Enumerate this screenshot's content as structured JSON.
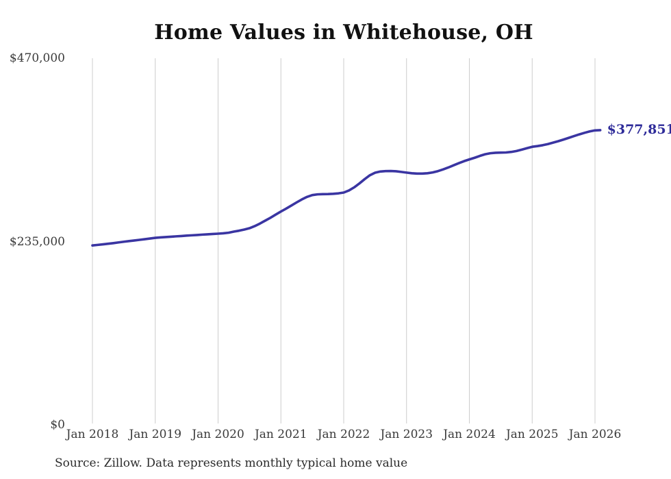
{
  "chart_data": {
    "type": "line",
    "title": "Home Values in Whitehouse, OH",
    "source_note": "Source: Zillow. Data represents monthly typical home value",
    "x_tick_labels": [
      "Jan 2018",
      "Jan 2019",
      "Jan 2020",
      "Jan 2021",
      "Jan 2022",
      "Jan 2023",
      "Jan 2024",
      "Jan 2025",
      "Jan 2026"
    ],
    "y_ticks": [
      {
        "value": 470000,
        "label": "$470,000"
      },
      {
        "value": 235000,
        "label": "$235,000"
      },
      {
        "value": 0,
        "label": "$0"
      }
    ],
    "ylim": [
      0,
      470000
    ],
    "grid": "vertical-only",
    "legend": "none",
    "line_color": "#3a35a2",
    "gridline_color": "#cccccc",
    "end_label": {
      "text": "$377,851",
      "value": 377851,
      "color": "#2e2b99"
    },
    "series": [
      {
        "name": "Typical home value",
        "x_start": "Jan 2018",
        "x_step": "1 month",
        "values": [
          230000,
          230700,
          231400,
          232200,
          233000,
          233900,
          234800,
          235600,
          236400,
          237200,
          238000,
          238900,
          239800,
          240300,
          240800,
          241200,
          241700,
          242100,
          242600,
          243000,
          243400,
          243900,
          244300,
          244700,
          245100,
          245600,
          246300,
          247700,
          248900,
          250400,
          252100,
          254800,
          258100,
          261800,
          265500,
          269500,
          273500,
          277200,
          281200,
          285200,
          289000,
          292300,
          294600,
          295500,
          295800,
          295900,
          296200,
          296800,
          297800,
          300500,
          304500,
          309500,
          315000,
          320000,
          323300,
          324800,
          325300,
          325400,
          325100,
          324300,
          323400,
          322600,
          322100,
          322100,
          322600,
          323600,
          325300,
          327500,
          330000,
          332800,
          335500,
          338100,
          340300,
          342400,
          344800,
          346900,
          348200,
          348800,
          349000,
          349200,
          349900,
          351100,
          352800,
          354700,
          356500,
          357400,
          358500,
          360000,
          361800,
          363700,
          365800,
          368000,
          370200,
          372400,
          374400,
          376200,
          377500,
          377851
        ]
      }
    ]
  }
}
